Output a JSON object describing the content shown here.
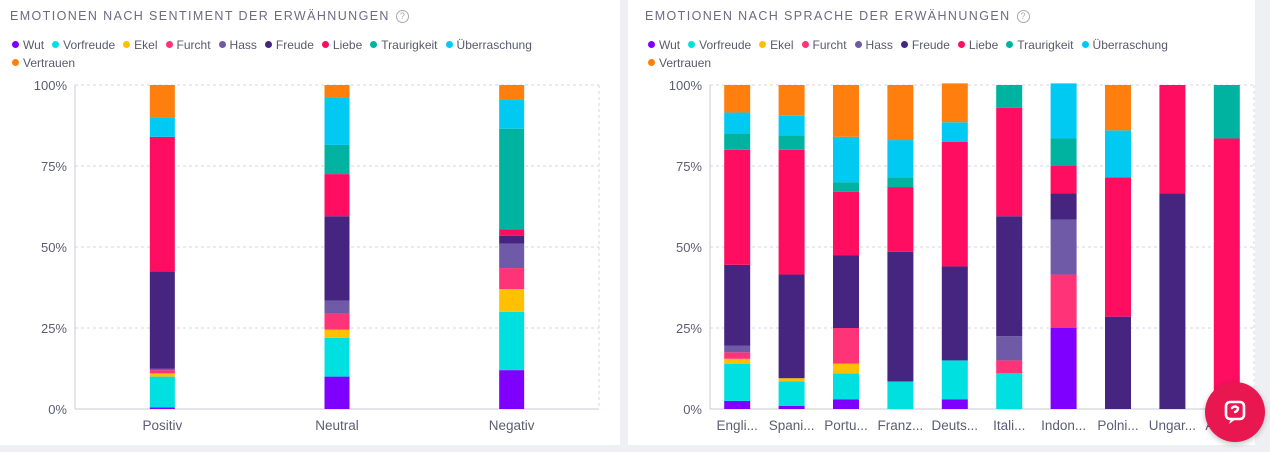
{
  "panels": [
    {
      "title": "EMOTIONEN NACH SENTIMENT DER ERWÄHNUNGEN",
      "help": "?"
    },
    {
      "title": "EMOTIONEN NACH SPRACHE DER ERWÄHNUNGEN",
      "help": "?"
    }
  ],
  "legend": [
    {
      "label": "Wut",
      "color": "#7f00ff"
    },
    {
      "label": "Vorfreude",
      "color": "#00e0e0"
    },
    {
      "label": "Ekel",
      "color": "#ffc000"
    },
    {
      "label": "Furcht",
      "color": "#ff3377"
    },
    {
      "label": "Hass",
      "color": "#6e5aa6"
    },
    {
      "label": "Freude",
      "color": "#45257f"
    },
    {
      "label": "Liebe",
      "color": "#ff0d60"
    },
    {
      "label": "Traurigkeit",
      "color": "#00b3a0"
    },
    {
      "label": "Überraschung",
      "color": "#00c9f2"
    },
    {
      "label": "Vertrauen",
      "color": "#ff7f0e"
    }
  ],
  "chart_data": [
    {
      "type": "bar",
      "stacked": true,
      "categories": [
        "Positiv",
        "Neutral",
        "Negativ"
      ],
      "ylim": [
        0,
        100
      ],
      "yticks": [
        "0%",
        "25%",
        "50%",
        "75%",
        "100%"
      ],
      "series": [
        {
          "name": "Wut",
          "values": [
            0.5,
            10,
            12
          ]
        },
        {
          "name": "Vorfreude",
          "values": [
            9.5,
            12,
            18
          ]
        },
        {
          "name": "Ekel",
          "values": [
            1,
            2.5,
            7
          ]
        },
        {
          "name": "Furcht",
          "values": [
            1,
            5,
            6.5
          ]
        },
        {
          "name": "Hass",
          "values": [
            0.5,
            4,
            7.5
          ]
        },
        {
          "name": "Freude",
          "values": [
            30,
            26,
            2.5
          ]
        },
        {
          "name": "Liebe",
          "values": [
            41.5,
            13,
            2
          ]
        },
        {
          "name": "Traurigkeit",
          "values": [
            0,
            9,
            31
          ]
        },
        {
          "name": "Überraschung",
          "values": [
            6,
            14.5,
            9
          ]
        },
        {
          "name": "Vertrauen",
          "values": [
            10,
            4,
            4.5
          ]
        }
      ]
    },
    {
      "type": "bar",
      "stacked": true,
      "categories": [
        "Engli...",
        "Spani...",
        "Portu...",
        "Franz...",
        "Deuts...",
        "Itali...",
        "Indon...",
        "Polni...",
        "Ungar...",
        "Ande..."
      ],
      "ylim": [
        0,
        100
      ],
      "yticks": [
        "0%",
        "25%",
        "50%",
        "75%",
        "100%"
      ],
      "series": [
        {
          "name": "Wut",
          "values": [
            2.5,
            1,
            3,
            0,
            3,
            0,
            25,
            0,
            0,
            0
          ]
        },
        {
          "name": "Vorfreude",
          "values": [
            11.5,
            7.5,
            8,
            8.5,
            12,
            11,
            0,
            0,
            0,
            0
          ]
        },
        {
          "name": "Ekel",
          "values": [
            1.5,
            1,
            3,
            0,
            0,
            0,
            0,
            0,
            0,
            0
          ]
        },
        {
          "name": "Furcht",
          "values": [
            2,
            0,
            11,
            0,
            0,
            4,
            16.5,
            0,
            0,
            0
          ]
        },
        {
          "name": "Hass",
          "values": [
            2,
            0,
            0,
            0,
            0,
            7.5,
            17,
            0,
            0,
            0
          ]
        },
        {
          "name": "Freude",
          "values": [
            25,
            32,
            22.5,
            40,
            29,
            37,
            8,
            28.5,
            66.5,
            0
          ]
        },
        {
          "name": "Liebe",
          "values": [
            35.5,
            38.5,
            19.5,
            20,
            38.5,
            33.5,
            8.5,
            43,
            33.5,
            83.5
          ]
        },
        {
          "name": "Traurigkeit",
          "values": [
            5,
            4.5,
            3,
            3,
            0,
            7,
            8.5,
            0,
            0,
            16.5
          ]
        },
        {
          "name": "Überraschung",
          "values": [
            6.5,
            6,
            14,
            11.5,
            6,
            0,
            17,
            14.5,
            0,
            0
          ]
        },
        {
          "name": "Vertrauen",
          "values": [
            8.5,
            9.5,
            16,
            17,
            12,
            0,
            0,
            14,
            0,
            0
          ]
        }
      ]
    }
  ]
}
